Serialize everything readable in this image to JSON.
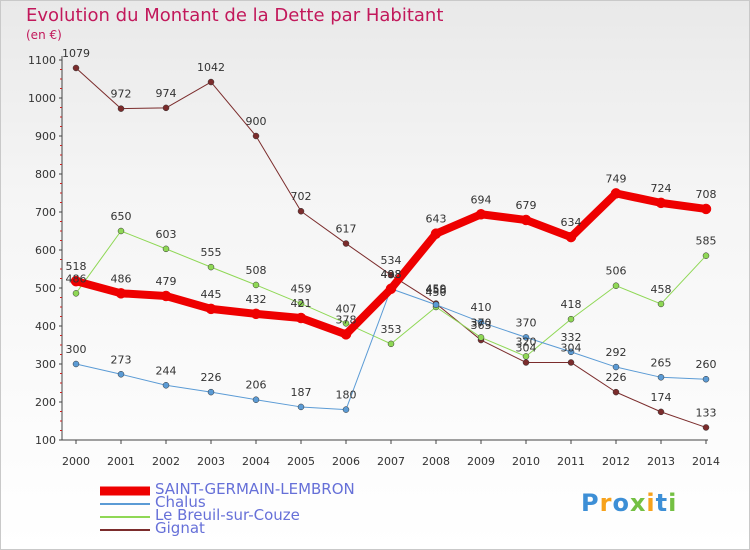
{
  "title": "Evolution du Montant de la Dette par Habitant",
  "unit": "(en €)",
  "logo": {
    "text": "Proxiti",
    "colors": [
      "#3d8fd6",
      "#f7a21b",
      "#3d8fd6",
      "#74c043",
      "#f7a21b",
      "#3d8fd6",
      "#74c043"
    ]
  },
  "chart_data": {
    "type": "line",
    "title": "Evolution du Montant de la Dette par Habitant",
    "ylabel": "(en €)",
    "xlabel": "",
    "x": [
      "2000",
      "2001",
      "2002",
      "2003",
      "2004",
      "2005",
      "2006",
      "2007",
      "2008",
      "2009",
      "2010",
      "2011",
      "2012",
      "2013",
      "2014"
    ],
    "ylim": [
      100,
      1100
    ],
    "yticks": [
      100,
      200,
      300,
      400,
      500,
      600,
      700,
      800,
      900,
      1000,
      1100
    ],
    "grid": false,
    "legend": "bottom-left",
    "series": [
      {
        "name": "SAINT-GERMAIN-LEMBRON",
        "color": "#ee0000",
        "width": 8,
        "values": [
          518,
          486,
          479,
          445,
          432,
          421,
          378,
          498,
          643,
          694,
          679,
          634,
          749,
          724,
          708
        ]
      },
      {
        "name": "Chalus",
        "color": "#5b9bd5",
        "width": 1,
        "values": [
          300,
          273,
          244,
          226,
          206,
          187,
          180,
          498,
          456,
          410,
          370,
          332,
          292,
          265,
          260
        ]
      },
      {
        "name": "Le Breuil-sur-Couze",
        "color": "#8fd855",
        "width": 1,
        "values": [
          486,
          650,
          603,
          555,
          508,
          459,
          407,
          353,
          450,
          370,
          320,
          418,
          506,
          458,
          585
        ]
      },
      {
        "name": "Gignat",
        "color": "#7b2c2c",
        "width": 1,
        "values": [
          1079,
          972,
          974,
          1042,
          900,
          702,
          617,
          534,
          459,
          363,
          304,
          304,
          226,
          174,
          133
        ]
      }
    ]
  }
}
